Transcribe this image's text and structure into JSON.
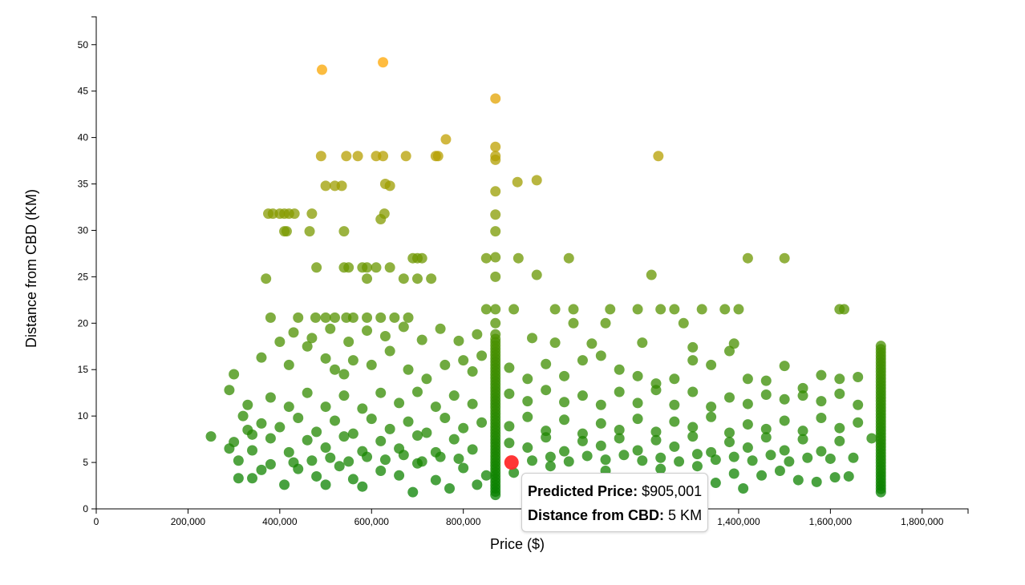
{
  "chart_data": {
    "type": "scatter",
    "xlabel": "Price ($)",
    "ylabel": "Distance from CBD (KM)",
    "xlim": [
      0,
      1900000
    ],
    "ylim": [
      0,
      53
    ],
    "x_ticks": [
      "0",
      "200,000",
      "400,000",
      "600,000",
      "800,000",
      "1,000,000",
      "1,200,000",
      "1,400,000",
      "1,600,000",
      "1,800,000"
    ],
    "y_ticks": [
      "0",
      "5",
      "10",
      "15",
      "20",
      "25",
      "30",
      "35",
      "40",
      "45",
      "50"
    ],
    "color_scale": {
      "near": "#008000",
      "mid": "#7a9a00",
      "far": "#ffa500"
    },
    "highlight_color": "#ff2a2a",
    "highlight": {
      "price": 905001,
      "distance": 5
    },
    "points": [
      [
        492000,
        47.3
      ],
      [
        625000,
        48.1
      ],
      [
        870000,
        44.2
      ],
      [
        870000,
        39
      ],
      [
        870000,
        38
      ],
      [
        870000,
        37.6
      ],
      [
        870000,
        34.2
      ],
      [
        870000,
        31.7
      ],
      [
        870000,
        29.9
      ],
      [
        870000,
        27.1
      ],
      [
        870000,
        25
      ],
      [
        870000,
        21.5
      ],
      [
        870000,
        20
      ],
      [
        870000,
        18.8
      ],
      [
        490000,
        38
      ],
      [
        545000,
        38
      ],
      [
        570000,
        38
      ],
      [
        610000,
        38
      ],
      [
        625000,
        38
      ],
      [
        675000,
        38
      ],
      [
        740000,
        38
      ],
      [
        745000,
        38
      ],
      [
        762000,
        39.8
      ],
      [
        1225000,
        38
      ],
      [
        500000,
        34.8
      ],
      [
        520000,
        34.8
      ],
      [
        535000,
        34.8
      ],
      [
        630000,
        35
      ],
      [
        640000,
        34.8
      ],
      [
        918000,
        35.2
      ],
      [
        960000,
        35.4
      ],
      [
        375000,
        31.8
      ],
      [
        385000,
        31.8
      ],
      [
        400000,
        31.8
      ],
      [
        410000,
        31.8
      ],
      [
        420000,
        31.8
      ],
      [
        432000,
        31.8
      ],
      [
        470000,
        31.8
      ],
      [
        628000,
        31.8
      ],
      [
        620000,
        31.2
      ],
      [
        410000,
        29.9
      ],
      [
        415000,
        29.9
      ],
      [
        465000,
        29.9
      ],
      [
        540000,
        29.9
      ],
      [
        480000,
        26
      ],
      [
        540000,
        26
      ],
      [
        550000,
        26
      ],
      [
        580000,
        26
      ],
      [
        590000,
        26
      ],
      [
        610000,
        26
      ],
      [
        640000,
        26
      ],
      [
        690000,
        27
      ],
      [
        700000,
        27
      ],
      [
        710000,
        27
      ],
      [
        850000,
        27
      ],
      [
        920000,
        27
      ],
      [
        1030000,
        27
      ],
      [
        1420000,
        27
      ],
      [
        1500000,
        27
      ],
      [
        370000,
        24.8
      ],
      [
        590000,
        24.8
      ],
      [
        670000,
        24.8
      ],
      [
        700000,
        24.8
      ],
      [
        730000,
        24.8
      ],
      [
        960000,
        25.2
      ],
      [
        1210000,
        25.2
      ],
      [
        380000,
        20.6
      ],
      [
        440000,
        20.6
      ],
      [
        478000,
        20.6
      ],
      [
        500000,
        20.6
      ],
      [
        520000,
        20.6
      ],
      [
        545000,
        20.6
      ],
      [
        560000,
        20.6
      ],
      [
        590000,
        20.6
      ],
      [
        620000,
        20.6
      ],
      [
        650000,
        20.6
      ],
      [
        680000,
        20.6
      ],
      [
        850000,
        21.5
      ],
      [
        910000,
        21.5
      ],
      [
        1000000,
        21.5
      ],
      [
        1040000,
        21.5
      ],
      [
        1120000,
        21.5
      ],
      [
        1180000,
        21.5
      ],
      [
        1230000,
        21.5
      ],
      [
        1260000,
        21.5
      ],
      [
        1320000,
        21.5
      ],
      [
        1370000,
        21.5
      ],
      [
        1400000,
        21.5
      ],
      [
        1620000,
        21.5
      ],
      [
        1630000,
        21.5
      ],
      [
        1110000,
        20
      ],
      [
        1280000,
        20
      ],
      [
        1040000,
        20
      ],
      [
        300000,
        14.5
      ],
      [
        290000,
        12.8
      ],
      [
        250000,
        7.8
      ],
      [
        290000,
        6.5
      ],
      [
        320000,
        10
      ],
      [
        330000,
        11.2
      ],
      [
        340000,
        8
      ],
      [
        310000,
        5.2
      ],
      [
        360000,
        16.3
      ],
      [
        400000,
        18
      ],
      [
        420000,
        15.5
      ],
      [
        460000,
        17.5
      ],
      [
        500000,
        16.2
      ],
      [
        520000,
        15
      ],
      [
        540000,
        14.5
      ],
      [
        560000,
        16
      ],
      [
        600000,
        15.5
      ],
      [
        640000,
        17
      ],
      [
        680000,
        15
      ],
      [
        720000,
        14
      ],
      [
        760000,
        15.5
      ],
      [
        800000,
        16
      ],
      [
        820000,
        14.8
      ],
      [
        840000,
        16.5
      ],
      [
        900000,
        15.2
      ],
      [
        940000,
        14
      ],
      [
        980000,
        15.6
      ],
      [
        1020000,
        14.3
      ],
      [
        1060000,
        16
      ],
      [
        1100000,
        16.5
      ],
      [
        1140000,
        15
      ],
      [
        1180000,
        14.3
      ],
      [
        1220000,
        13.5
      ],
      [
        1260000,
        14
      ],
      [
        1300000,
        16
      ],
      [
        1340000,
        15.5
      ],
      [
        1380000,
        17
      ],
      [
        1420000,
        14
      ],
      [
        1460000,
        13.8
      ],
      [
        1500000,
        15.4
      ],
      [
        1540000,
        13
      ],
      [
        1580000,
        14.4
      ],
      [
        1620000,
        14
      ],
      [
        1660000,
        14.2
      ],
      [
        380000,
        12
      ],
      [
        420000,
        11
      ],
      [
        460000,
        12.5
      ],
      [
        500000,
        11
      ],
      [
        540000,
        12.2
      ],
      [
        580000,
        10.8
      ],
      [
        620000,
        12.5
      ],
      [
        660000,
        11.4
      ],
      [
        700000,
        12.6
      ],
      [
        740000,
        11
      ],
      [
        780000,
        12.2
      ],
      [
        820000,
        11.3
      ],
      [
        900000,
        12.4
      ],
      [
        940000,
        11.6
      ],
      [
        980000,
        12.8
      ],
      [
        1020000,
        11.5
      ],
      [
        1060000,
        12.2
      ],
      [
        1100000,
        11.2
      ],
      [
        1140000,
        12.6
      ],
      [
        1180000,
        11.4
      ],
      [
        1220000,
        12.8
      ],
      [
        1260000,
        11.2
      ],
      [
        1300000,
        12.6
      ],
      [
        1340000,
        11
      ],
      [
        1380000,
        12
      ],
      [
        1420000,
        11.3
      ],
      [
        1460000,
        12.3
      ],
      [
        1500000,
        11.8
      ],
      [
        1540000,
        12.2
      ],
      [
        1580000,
        11.6
      ],
      [
        1620000,
        12.4
      ],
      [
        1660000,
        11.2
      ],
      [
        330000,
        8.5
      ],
      [
        360000,
        9.2
      ],
      [
        400000,
        8.8
      ],
      [
        440000,
        9.8
      ],
      [
        480000,
        8.3
      ],
      [
        520000,
        9.5
      ],
      [
        560000,
        8.1
      ],
      [
        600000,
        9.7
      ],
      [
        640000,
        8.6
      ],
      [
        680000,
        9.4
      ],
      [
        720000,
        8.2
      ],
      [
        760000,
        9.8
      ],
      [
        800000,
        8.7
      ],
      [
        840000,
        9.3
      ],
      [
        900000,
        8.9
      ],
      [
        940000,
        9.9
      ],
      [
        980000,
        8.4
      ],
      [
        1020000,
        9.6
      ],
      [
        1060000,
        8.1
      ],
      [
        1100000,
        9.2
      ],
      [
        1140000,
        8.5
      ],
      [
        1180000,
        9.7
      ],
      [
        1220000,
        8.3
      ],
      [
        1260000,
        9.4
      ],
      [
        1300000,
        8.8
      ],
      [
        1340000,
        9.9
      ],
      [
        1380000,
        8.2
      ],
      [
        1420000,
        9.1
      ],
      [
        1460000,
        8.6
      ],
      [
        1500000,
        9.5
      ],
      [
        1540000,
        8.4
      ],
      [
        1580000,
        9.8
      ],
      [
        1620000,
        8.7
      ],
      [
        1660000,
        9.3
      ],
      [
        1690000,
        7.6
      ],
      [
        300000,
        7.2
      ],
      [
        340000,
        6.3
      ],
      [
        380000,
        7.6
      ],
      [
        420000,
        6.1
      ],
      [
        460000,
        7.4
      ],
      [
        500000,
        6.6
      ],
      [
        540000,
        7.8
      ],
      [
        580000,
        6.2
      ],
      [
        620000,
        7.3
      ],
      [
        660000,
        6.5
      ],
      [
        700000,
        7.9
      ],
      [
        740000,
        6.1
      ],
      [
        780000,
        7.5
      ],
      [
        820000,
        6.4
      ],
      [
        900000,
        7.1
      ],
      [
        940000,
        6.6
      ],
      [
        980000,
        7.7
      ],
      [
        1020000,
        6.2
      ],
      [
        1060000,
        7.3
      ],
      [
        1100000,
        6.8
      ],
      [
        1140000,
        7.6
      ],
      [
        1180000,
        6.3
      ],
      [
        1220000,
        7.4
      ],
      [
        1260000,
        6.7
      ],
      [
        1300000,
        7.8
      ],
      [
        1340000,
        6.1
      ],
      [
        1380000,
        7.2
      ],
      [
        1420000,
        6.6
      ],
      [
        1460000,
        7.7
      ],
      [
        1500000,
        6.3
      ],
      [
        1540000,
        7.5
      ],
      [
        1580000,
        6.2
      ],
      [
        1620000,
        7.3
      ],
      [
        1650000,
        5.5
      ],
      [
        310000,
        3.3
      ],
      [
        340000,
        3.3
      ],
      [
        360000,
        4.2
      ],
      [
        380000,
        4.8
      ],
      [
        410000,
        2.6
      ],
      [
        440000,
        4.3
      ],
      [
        480000,
        3.5
      ],
      [
        500000,
        2.6
      ],
      [
        530000,
        4.6
      ],
      [
        560000,
        3.2
      ],
      [
        580000,
        2.4
      ],
      [
        620000,
        4.1
      ],
      [
        660000,
        3.6
      ],
      [
        690000,
        1.8
      ],
      [
        700000,
        4.9
      ],
      [
        740000,
        3.1
      ],
      [
        770000,
        2.2
      ],
      [
        800000,
        4.4
      ],
      [
        830000,
        2.6
      ],
      [
        850000,
        3.6
      ],
      [
        910000,
        3.9
      ],
      [
        950000,
        2.8
      ],
      [
        990000,
        4.6
      ],
      [
        1030000,
        3.2
      ],
      [
        1070000,
        2.4
      ],
      [
        1110000,
        4.1
      ],
      [
        1150000,
        3.3
      ],
      [
        1190000,
        2.6
      ],
      [
        1230000,
        4.3
      ],
      [
        1270000,
        3.1
      ],
      [
        1310000,
        4.6
      ],
      [
        1350000,
        2.8
      ],
      [
        1390000,
        3.8
      ],
      [
        1410000,
        2.2
      ],
      [
        1450000,
        3.6
      ],
      [
        1490000,
        4.1
      ],
      [
        1530000,
        3.1
      ],
      [
        1570000,
        2.9
      ],
      [
        1610000,
        3.4
      ],
      [
        1640000,
        3.5
      ],
      [
        430000,
        5
      ],
      [
        470000,
        5.2
      ],
      [
        510000,
        5.5
      ],
      [
        550000,
        5.1
      ],
      [
        590000,
        5.6
      ],
      [
        630000,
        5.3
      ],
      [
        670000,
        5.8
      ],
      [
        710000,
        5.1
      ],
      [
        750000,
        5.6
      ],
      [
        790000,
        5.4
      ],
      [
        950000,
        5.2
      ],
      [
        990000,
        5.6
      ],
      [
        1030000,
        5.1
      ],
      [
        1070000,
        5.7
      ],
      [
        1110000,
        5.3
      ],
      [
        1150000,
        5.8
      ],
      [
        1190000,
        5.2
      ],
      [
        1230000,
        5.5
      ],
      [
        1270000,
        5.1
      ],
      [
        1310000,
        5.9
      ],
      [
        1350000,
        5.3
      ],
      [
        1390000,
        5.6
      ],
      [
        1430000,
        5.2
      ],
      [
        1470000,
        5.8
      ],
      [
        1510000,
        5.1
      ],
      [
        1550000,
        5.5
      ],
      [
        1600000,
        5.4
      ],
      [
        430000,
        19
      ],
      [
        470000,
        18.4
      ],
      [
        510000,
        19.4
      ],
      [
        550000,
        18
      ],
      [
        590000,
        19.2
      ],
      [
        630000,
        18.6
      ],
      [
        670000,
        19.6
      ],
      [
        710000,
        18.2
      ],
      [
        750000,
        19.4
      ],
      [
        790000,
        18.1
      ],
      [
        830000,
        18.8
      ],
      [
        950000,
        18.4
      ],
      [
        1000000,
        17.9
      ],
      [
        1080000,
        17.8
      ],
      [
        1190000,
        17.9
      ],
      [
        1300000,
        17.4
      ],
      [
        1390000,
        17.8
      ]
    ],
    "columns": [
      {
        "price": 870000,
        "min": 1.5,
        "max": 18.5,
        "step": 0.35
      },
      {
        "price": 1710000,
        "min": 1.8,
        "max": 17.8,
        "step": 0.35
      }
    ]
  },
  "tooltip": {
    "price_label": "Predicted Price:",
    "price_value": "$905,001",
    "distance_label": "Distance from CBD:",
    "distance_value": "5 KM"
  }
}
